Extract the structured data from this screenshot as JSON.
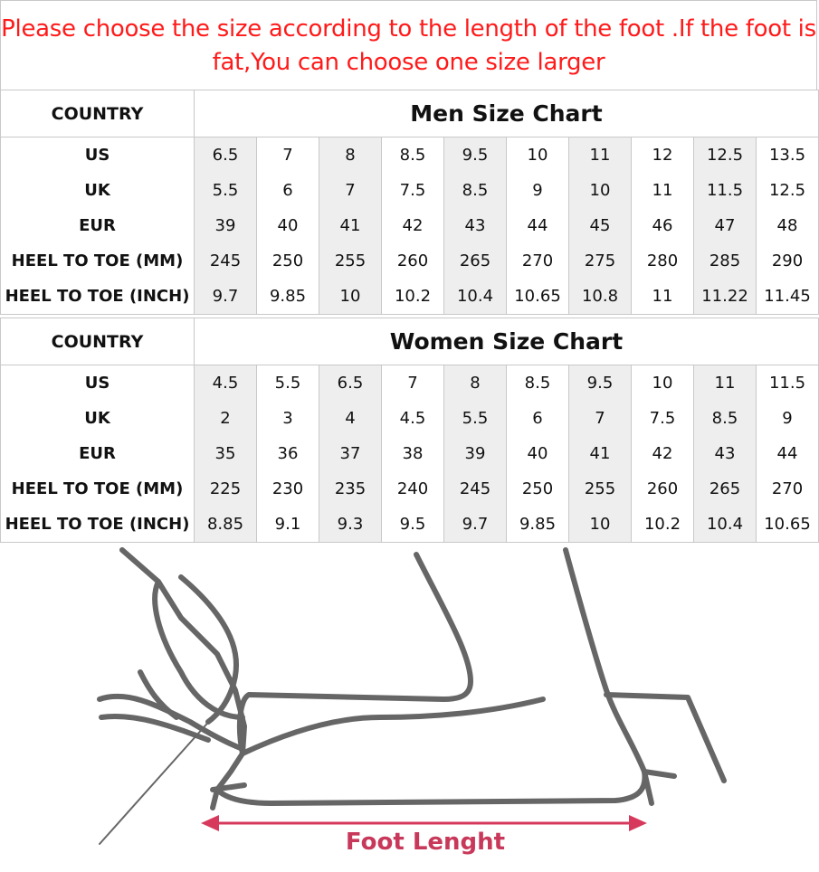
{
  "notice": "Please choose the size according to the length of the foot .If the foot is fat,You can choose one size larger",
  "colors": {
    "notice": "#ff1a1a",
    "shaded_column": "#eeeeee",
    "arrow": "#d6395b",
    "grid": "#c8c8c8"
  },
  "men": {
    "country_label": "COUNTRY",
    "title": "Men Size Chart",
    "rows": [
      {
        "label": "US",
        "values": [
          "6.5",
          "7",
          "8",
          "8.5",
          "9.5",
          "10",
          "11",
          "12",
          "12.5",
          "13.5"
        ]
      },
      {
        "label": "UK",
        "values": [
          "5.5",
          "6",
          "7",
          "7.5",
          "8.5",
          "9",
          "10",
          "11",
          "11.5",
          "12.5"
        ]
      },
      {
        "label": "EUR",
        "values": [
          "39",
          "40",
          "41",
          "42",
          "43",
          "44",
          "45",
          "46",
          "47",
          "48"
        ]
      },
      {
        "label": "HEEL TO TOE (MM)",
        "values": [
          "245",
          "250",
          "255",
          "260",
          "265",
          "270",
          "275",
          "280",
          "285",
          "290"
        ]
      },
      {
        "label": "HEEL TO TOE (INCH)",
        "values": [
          "9.7",
          "9.85",
          "10",
          "10.2",
          "10.4",
          "10.65",
          "10.8",
          "11",
          "11.22",
          "11.45"
        ]
      }
    ]
  },
  "women": {
    "country_label": "COUNTRY",
    "title": "Women Size Chart",
    "rows": [
      {
        "label": "US",
        "values": [
          "4.5",
          "5.5",
          "6.5",
          "7",
          "8",
          "8.5",
          "9.5",
          "10",
          "11",
          "11.5"
        ]
      },
      {
        "label": "UK",
        "values": [
          "2",
          "3",
          "4",
          "4.5",
          "5.5",
          "6",
          "7",
          "7.5",
          "8.5",
          "9"
        ]
      },
      {
        "label": "EUR",
        "values": [
          "35",
          "36",
          "37",
          "38",
          "39",
          "40",
          "41",
          "42",
          "43",
          "44"
        ]
      },
      {
        "label": "HEEL TO TOE (MM)",
        "values": [
          "225",
          "230",
          "235",
          "240",
          "245",
          "250",
          "255",
          "260",
          "265",
          "270"
        ]
      },
      {
        "label": "HEEL TO TOE (INCH)",
        "values": [
          "8.85",
          "9.1",
          "9.3",
          "9.5",
          "9.7",
          "9.85",
          "10",
          "10.2",
          "10.4",
          "10.65"
        ]
      }
    ]
  },
  "illustration": {
    "caption": "Foot Lenght",
    "icon": "foot-measure-illustration"
  }
}
